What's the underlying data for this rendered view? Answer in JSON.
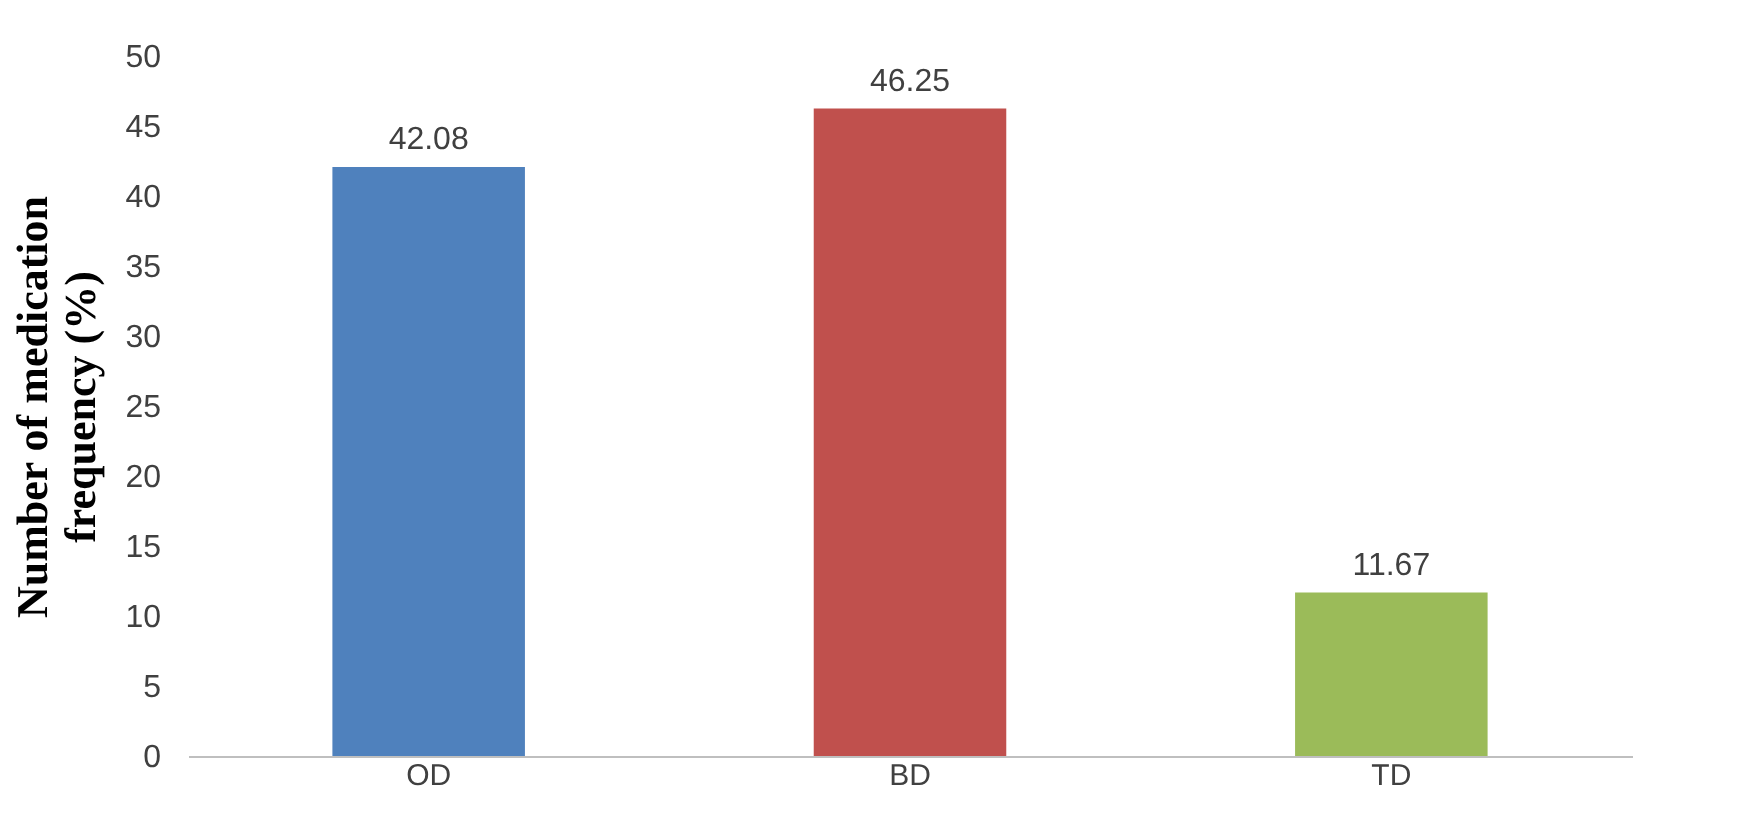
{
  "chart_data": {
    "type": "bar",
    "ylabel": "Number of medication frequency (%)",
    "categories": [
      "OD",
      "BD",
      "TD"
    ],
    "values": [
      42.08,
      46.25,
      11.67
    ],
    "colors": [
      "#4f81bd",
      "#c0504d",
      "#9bbb59"
    ],
    "ylim": [
      0,
      50
    ],
    "yticks": [
      0,
      5,
      10,
      15,
      20,
      25,
      30,
      35,
      40,
      45,
      50
    ],
    "data_labels": true
  }
}
